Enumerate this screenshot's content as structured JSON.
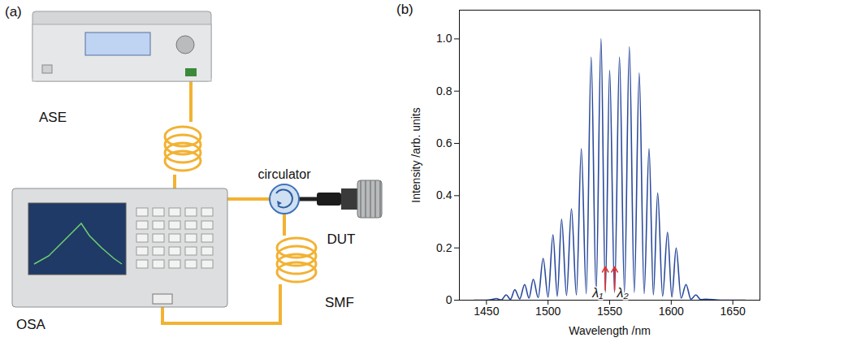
{
  "diagram": {
    "panel_label": "(a)",
    "labels": {
      "ase": "ASE",
      "circulator": "circulator",
      "dut": "DUT",
      "smf": "SMF",
      "osa": "OSA"
    }
  },
  "chart_data": {
    "type": "line",
    "panel_label": "(b)",
    "x_label": "Wavelength /nm",
    "y_label": "Intensity /arb. units",
    "x": [
      1440,
      1450,
      1454,
      1458,
      1462,
      1466,
      1469.5,
      1473,
      1477,
      1481,
      1484.5,
      1488,
      1492,
      1496,
      1500,
      1504,
      1507.5,
      1511,
      1515,
      1519,
      1523,
      1527,
      1531,
      1535,
      1539,
      1543,
      1546.5,
      1550,
      1554,
      1558,
      1562,
      1566,
      1570,
      1574,
      1578,
      1582,
      1585.5,
      1589,
      1593,
      1597,
      1600.5,
      1604,
      1608,
      1612,
      1616,
      1620,
      1624,
      1628,
      1640,
      1660
    ],
    "values": [
      0,
      0,
      0.002,
      0.006,
      0.001,
      0.02,
      0.003,
      0.04,
      0.005,
      0.06,
      0.008,
      0.08,
      0.01,
      0.16,
      0.012,
      0.25,
      0.015,
      0.31,
      0.018,
      0.35,
      0.02,
      0.58,
      0.025,
      0.93,
      0.03,
      1.0,
      0.03,
      0.88,
      0.03,
      0.93,
      0.03,
      0.97,
      0.03,
      0.87,
      0.025,
      0.58,
      0.02,
      0.41,
      0.015,
      0.26,
      0.012,
      0.2,
      0.008,
      0.06,
      0.004,
      0.02,
      0.002,
      0.004,
      0,
      0
    ],
    "color": "#2a4a9c",
    "xlim": [
      1428,
      1672
    ],
    "xticks": [
      1450,
      1500,
      1550,
      1600,
      1650
    ],
    "ylim": [
      0,
      1.11
    ],
    "yticks": [
      0,
      0.2,
      0.4,
      0.6,
      0.8,
      {
        "value": 1,
        "label": "1.0"
      }
    ],
    "grid": false,
    "annotations": [
      {
        "text": "λ₁",
        "x": 1546.5
      },
      {
        "text": "λ₂",
        "x": 1554
      }
    ]
  }
}
